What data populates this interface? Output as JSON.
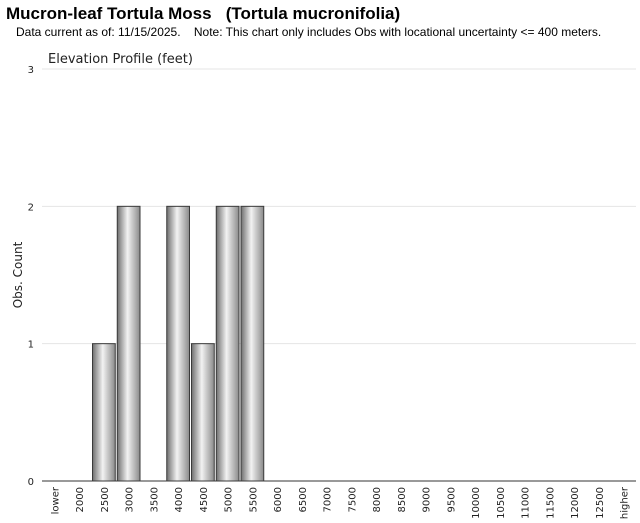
{
  "header": {
    "title": "Mucron-leaf Tortula Moss   (Tortula mucronifolia)",
    "note": "Data current as of: 11/15/2025.    Note: This chart only includes Obs with locational uncertainty <= 400 meters."
  },
  "chart_data": {
    "type": "bar",
    "title": "Elevation Profile (feet)",
    "xlabel": "",
    "ylabel": "Obs. Count",
    "ylim": [
      0,
      3
    ],
    "yticks": [
      0,
      1,
      2,
      3
    ],
    "grid": true,
    "categories": [
      "lower",
      "2000",
      "2500",
      "3000",
      "3500",
      "4000",
      "4500",
      "5000",
      "5500",
      "6000",
      "6500",
      "7000",
      "7500",
      "8000",
      "8500",
      "9000",
      "9500",
      "10000",
      "10500",
      "11000",
      "11500",
      "12000",
      "12500",
      "higher"
    ],
    "values": [
      0,
      0,
      1,
      2,
      0,
      2,
      1,
      2,
      2,
      0,
      0,
      0,
      0,
      0,
      0,
      0,
      0,
      0,
      0,
      0,
      0,
      0,
      0,
      0
    ],
    "bar_color": "#a8a8a8"
  }
}
